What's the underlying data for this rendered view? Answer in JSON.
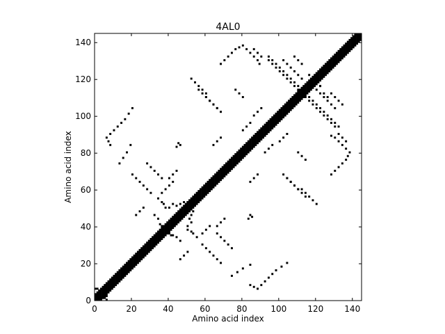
{
  "chart_data": {
    "type": "heatmap",
    "title": "4AL0",
    "xlabel": "Amino acid index",
    "ylabel": "Amino acid index",
    "xlim": [
      0,
      145
    ],
    "ylim": [
      0,
      145
    ],
    "xticks": [
      0,
      20,
      40,
      60,
      80,
      100,
      120,
      140
    ],
    "yticks": [
      0,
      20,
      40,
      60,
      80,
      100,
      120,
      140
    ],
    "colors": {
      "contact": "#000000",
      "background": "#ffffff"
    },
    "diagonal_band_halfwidth": 3,
    "contacts": [
      [
        0,
        6
      ],
      [
        1,
        6
      ],
      [
        2,
        5
      ],
      [
        0,
        3
      ],
      [
        1,
        2
      ],
      [
        5,
        1
      ],
      [
        6,
        0
      ],
      [
        6,
        2
      ],
      [
        3,
        0
      ],
      [
        4,
        1
      ],
      [
        36,
        53
      ],
      [
        37,
        52
      ],
      [
        38,
        50
      ],
      [
        40,
        50
      ],
      [
        42,
        52
      ],
      [
        44,
        51
      ],
      [
        46,
        52
      ],
      [
        48,
        53
      ],
      [
        50,
        53
      ],
      [
        52,
        51
      ],
      [
        32,
        46
      ],
      [
        34,
        44
      ],
      [
        35,
        41
      ],
      [
        36,
        40
      ],
      [
        38,
        38
      ],
      [
        40,
        37
      ],
      [
        42,
        35
      ],
      [
        53,
        36
      ],
      [
        52,
        37
      ],
      [
        50,
        38
      ],
      [
        50,
        40
      ],
      [
        52,
        42
      ],
      [
        51,
        44
      ],
      [
        52,
        46
      ],
      [
        53,
        48
      ],
      [
        46,
        32
      ],
      [
        44,
        34
      ],
      [
        41,
        35
      ],
      [
        40,
        36
      ],
      [
        34,
        55
      ],
      [
        36,
        58
      ],
      [
        38,
        60
      ],
      [
        40,
        62
      ],
      [
        42,
        64
      ],
      [
        55,
        34
      ],
      [
        58,
        36
      ],
      [
        60,
        38
      ],
      [
        62,
        40
      ],
      [
        20,
        68
      ],
      [
        22,
        66
      ],
      [
        24,
        64
      ],
      [
        26,
        62
      ],
      [
        28,
        60
      ],
      [
        30,
        58
      ],
      [
        68,
        20
      ],
      [
        66,
        22
      ],
      [
        64,
        24
      ],
      [
        62,
        26
      ],
      [
        60,
        28
      ],
      [
        58,
        30
      ],
      [
        36,
        66
      ],
      [
        34,
        68
      ],
      [
        32,
        70
      ],
      [
        30,
        72
      ],
      [
        28,
        74
      ],
      [
        66,
        36
      ],
      [
        68,
        34
      ],
      [
        70,
        32
      ],
      [
        72,
        30
      ],
      [
        74,
        28
      ],
      [
        13,
        74
      ],
      [
        15,
        77
      ],
      [
        17,
        80
      ],
      [
        19,
        84
      ],
      [
        74,
        13
      ],
      [
        77,
        15
      ],
      [
        80,
        17
      ],
      [
        84,
        19
      ],
      [
        8,
        84
      ],
      [
        7,
        86
      ],
      [
        6,
        88
      ],
      [
        8,
        90
      ],
      [
        10,
        92
      ],
      [
        12,
        94
      ],
      [
        14,
        96
      ],
      [
        16,
        98
      ],
      [
        18,
        101
      ],
      [
        20,
        104
      ],
      [
        84,
        8
      ],
      [
        86,
        7
      ],
      [
        88,
        6
      ],
      [
        90,
        8
      ],
      [
        92,
        10
      ],
      [
        94,
        12
      ],
      [
        96,
        14
      ],
      [
        98,
        16
      ],
      [
        101,
        18
      ],
      [
        104,
        20
      ],
      [
        44,
        83
      ],
      [
        45,
        85
      ],
      [
        46,
        84
      ],
      [
        83,
        44
      ],
      [
        85,
        45
      ],
      [
        84,
        46
      ],
      [
        60,
        110
      ],
      [
        62,
        108
      ],
      [
        64,
        106
      ],
      [
        66,
        104
      ],
      [
        68,
        102
      ],
      [
        110,
        60
      ],
      [
        108,
        62
      ],
      [
        106,
        64
      ],
      [
        104,
        66
      ],
      [
        102,
        68
      ],
      [
        68,
        128
      ],
      [
        70,
        130
      ],
      [
        72,
        132
      ],
      [
        74,
        134
      ],
      [
        76,
        136
      ],
      [
        78,
        137
      ],
      [
        80,
        138
      ],
      [
        82,
        136
      ],
      [
        84,
        134
      ],
      [
        86,
        132
      ],
      [
        88,
        130
      ],
      [
        89,
        128
      ],
      [
        128,
        68
      ],
      [
        130,
        70
      ],
      [
        132,
        72
      ],
      [
        134,
        74
      ],
      [
        136,
        76
      ],
      [
        137,
        78
      ],
      [
        138,
        80
      ],
      [
        136,
        82
      ],
      [
        134,
        84
      ],
      [
        132,
        86
      ],
      [
        130,
        88
      ],
      [
        128,
        89
      ],
      [
        94,
        130
      ],
      [
        96,
        128
      ],
      [
        98,
        126
      ],
      [
        100,
        124
      ],
      [
        102,
        122
      ],
      [
        104,
        120
      ],
      [
        106,
        118
      ],
      [
        108,
        116
      ],
      [
        110,
        114
      ],
      [
        112,
        111
      ],
      [
        130,
        94
      ],
      [
        128,
        96
      ],
      [
        126,
        98
      ],
      [
        124,
        100
      ],
      [
        122,
        102
      ],
      [
        120,
        104
      ],
      [
        118,
        106
      ],
      [
        116,
        108
      ],
      [
        114,
        110
      ],
      [
        111,
        112
      ],
      [
        114,
        112
      ],
      [
        116,
        110
      ],
      [
        118,
        108
      ],
      [
        120,
        106
      ],
      [
        122,
        104
      ],
      [
        124,
        102
      ],
      [
        126,
        100
      ],
      [
        128,
        98
      ],
      [
        130,
        96
      ],
      [
        132,
        94
      ],
      [
        112,
        114
      ],
      [
        110,
        116
      ],
      [
        108,
        118
      ],
      [
        106,
        120
      ],
      [
        104,
        122
      ],
      [
        102,
        124
      ],
      [
        100,
        126
      ],
      [
        98,
        128
      ],
      [
        96,
        130
      ],
      [
        94,
        132
      ],
      [
        116,
        122
      ],
      [
        118,
        120
      ],
      [
        120,
        118
      ],
      [
        122,
        116
      ],
      [
        122,
        116
      ],
      [
        124,
        112
      ],
      [
        126,
        110
      ],
      [
        80,
        92
      ],
      [
        82,
        94
      ],
      [
        84,
        96
      ],
      [
        92,
        80
      ],
      [
        94,
        82
      ],
      [
        96,
        84
      ],
      [
        104,
        66
      ],
      [
        106,
        64
      ],
      [
        108,
        62
      ],
      [
        110,
        60
      ],
      [
        112,
        58
      ],
      [
        114,
        56
      ],
      [
        66,
        104
      ],
      [
        64,
        106
      ],
      [
        62,
        108
      ],
      [
        60,
        110
      ],
      [
        58,
        112
      ],
      [
        56,
        114
      ],
      [
        120,
        114
      ],
      [
        122,
        112
      ],
      [
        124,
        110
      ],
      [
        126,
        108
      ],
      [
        128,
        106
      ],
      [
        130,
        104
      ],
      [
        112,
        120
      ],
      [
        110,
        122
      ],
      [
        108,
        124
      ],
      [
        106,
        126
      ],
      [
        104,
        128
      ],
      [
        102,
        130
      ],
      [
        128,
        112
      ],
      [
        130,
        110
      ],
      [
        132,
        108
      ],
      [
        134,
        106
      ],
      [
        108,
        132
      ],
      [
        110,
        130
      ],
      [
        112,
        128
      ],
      [
        80,
        110
      ],
      [
        78,
        112
      ],
      [
        76,
        114
      ],
      [
        110,
        80
      ],
      [
        112,
        78
      ],
      [
        114,
        76
      ],
      [
        60,
        112
      ],
      [
        58,
        114
      ],
      [
        56,
        116
      ],
      [
        54,
        118
      ],
      [
        52,
        120
      ],
      [
        112,
        60
      ],
      [
        114,
        58
      ],
      [
        116,
        56
      ],
      [
        118,
        54
      ],
      [
        120,
        52
      ],
      [
        86,
        100
      ],
      [
        88,
        102
      ],
      [
        90,
        104
      ],
      [
        100,
        86
      ],
      [
        102,
        88
      ],
      [
        104,
        90
      ],
      [
        64,
        84
      ],
      [
        66,
        86
      ],
      [
        68,
        88
      ],
      [
        84,
        64
      ],
      [
        86,
        66
      ],
      [
        88,
        68
      ],
      [
        40,
        66
      ],
      [
        42,
        68
      ],
      [
        44,
        70
      ],
      [
        66,
        40
      ],
      [
        68,
        42
      ],
      [
        70,
        44
      ],
      [
        22,
        46
      ],
      [
        24,
        48
      ],
      [
        26,
        50
      ],
      [
        46,
        22
      ],
      [
        48,
        24
      ],
      [
        50,
        26
      ],
      [
        132,
        90
      ],
      [
        134,
        88
      ],
      [
        136,
        86
      ],
      [
        90,
        132
      ],
      [
        88,
        134
      ],
      [
        86,
        136
      ]
    ]
  }
}
